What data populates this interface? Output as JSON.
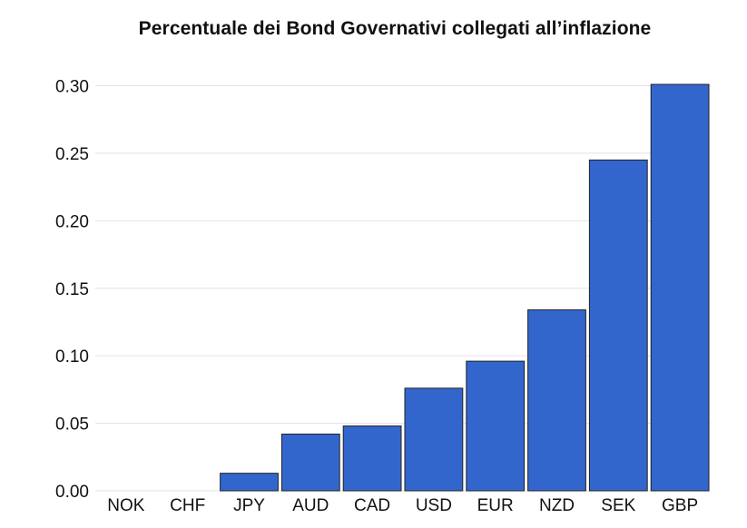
{
  "chart_data": {
    "type": "bar",
    "title": "Percentuale dei Bond Governativi collegati all’inflazione",
    "xlabel": "",
    "ylabel": "",
    "categories": [
      "NOK",
      "CHF",
      "JPY",
      "AUD",
      "CAD",
      "USD",
      "EUR",
      "NZD",
      "SEK",
      "GBP"
    ],
    "values": [
      0.0,
      0.0,
      0.013,
      0.042,
      0.048,
      0.076,
      0.096,
      0.134,
      0.245,
      0.301
    ],
    "ylim": [
      0,
      0.3
    ],
    "yticks": [
      "0.00",
      "0.05",
      "0.10",
      "0.15",
      "0.20",
      "0.25",
      "0.30"
    ],
    "grid": true,
    "legend": "none",
    "bar_color": "#3366cc",
    "bar_edge_color": "#222222",
    "grid_color": "#e3e3e3"
  }
}
